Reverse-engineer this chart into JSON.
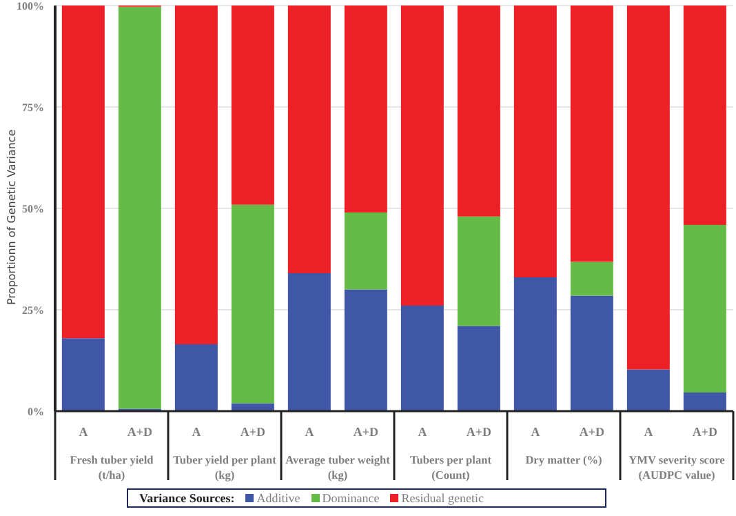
{
  "chart_data": {
    "type": "bar",
    "stacked": true,
    "ylabel": "Proportionn of Genetic Variance",
    "legend_title": "Variance Sources:",
    "categories": [
      "A",
      "A+D",
      "A",
      "A+D",
      "A",
      "A+D",
      "A",
      "A+D",
      "A",
      "A+D",
      "A",
      "A+D"
    ],
    "annotations": [
      "Fresh tuber yield (t/ha)",
      "Tuber yield per plant (kg)",
      "Average tuber weight (kg)",
      "Tubers per plant (Count)",
      "Dry matter (%)",
      "YMV severity score (AUDPC value)"
    ],
    "series": [
      {
        "name": "Additive",
        "color": "#3f57a6",
        "values": [
          18,
          0.6,
          16.5,
          1.9,
          34,
          30,
          26,
          21,
          33,
          28.5,
          10.3,
          4.6
        ]
      },
      {
        "name": "Dominance",
        "color": "#66bb46",
        "values": [
          0,
          99.1,
          0,
          49,
          0,
          19,
          0,
          27,
          0,
          8.3,
          0,
          41.3
        ]
      },
      {
        "name": "Residual genetic",
        "color": "#ed1f27",
        "values": [
          82,
          0.3,
          83.5,
          49.1,
          66,
          51,
          74,
          52,
          67,
          63.2,
          89.7,
          54.1
        ]
      }
    ],
    "ylim": [
      0,
      100
    ],
    "yticks": [
      {
        "value": 0,
        "label": "0%"
      },
      {
        "value": 25,
        "label": "25%"
      },
      {
        "value": 50,
        "label": "50%"
      },
      {
        "value": 75,
        "label": "75%"
      },
      {
        "value": 100,
        "label": "100%"
      }
    ],
    "grid": "y",
    "legend": "bottom"
  }
}
